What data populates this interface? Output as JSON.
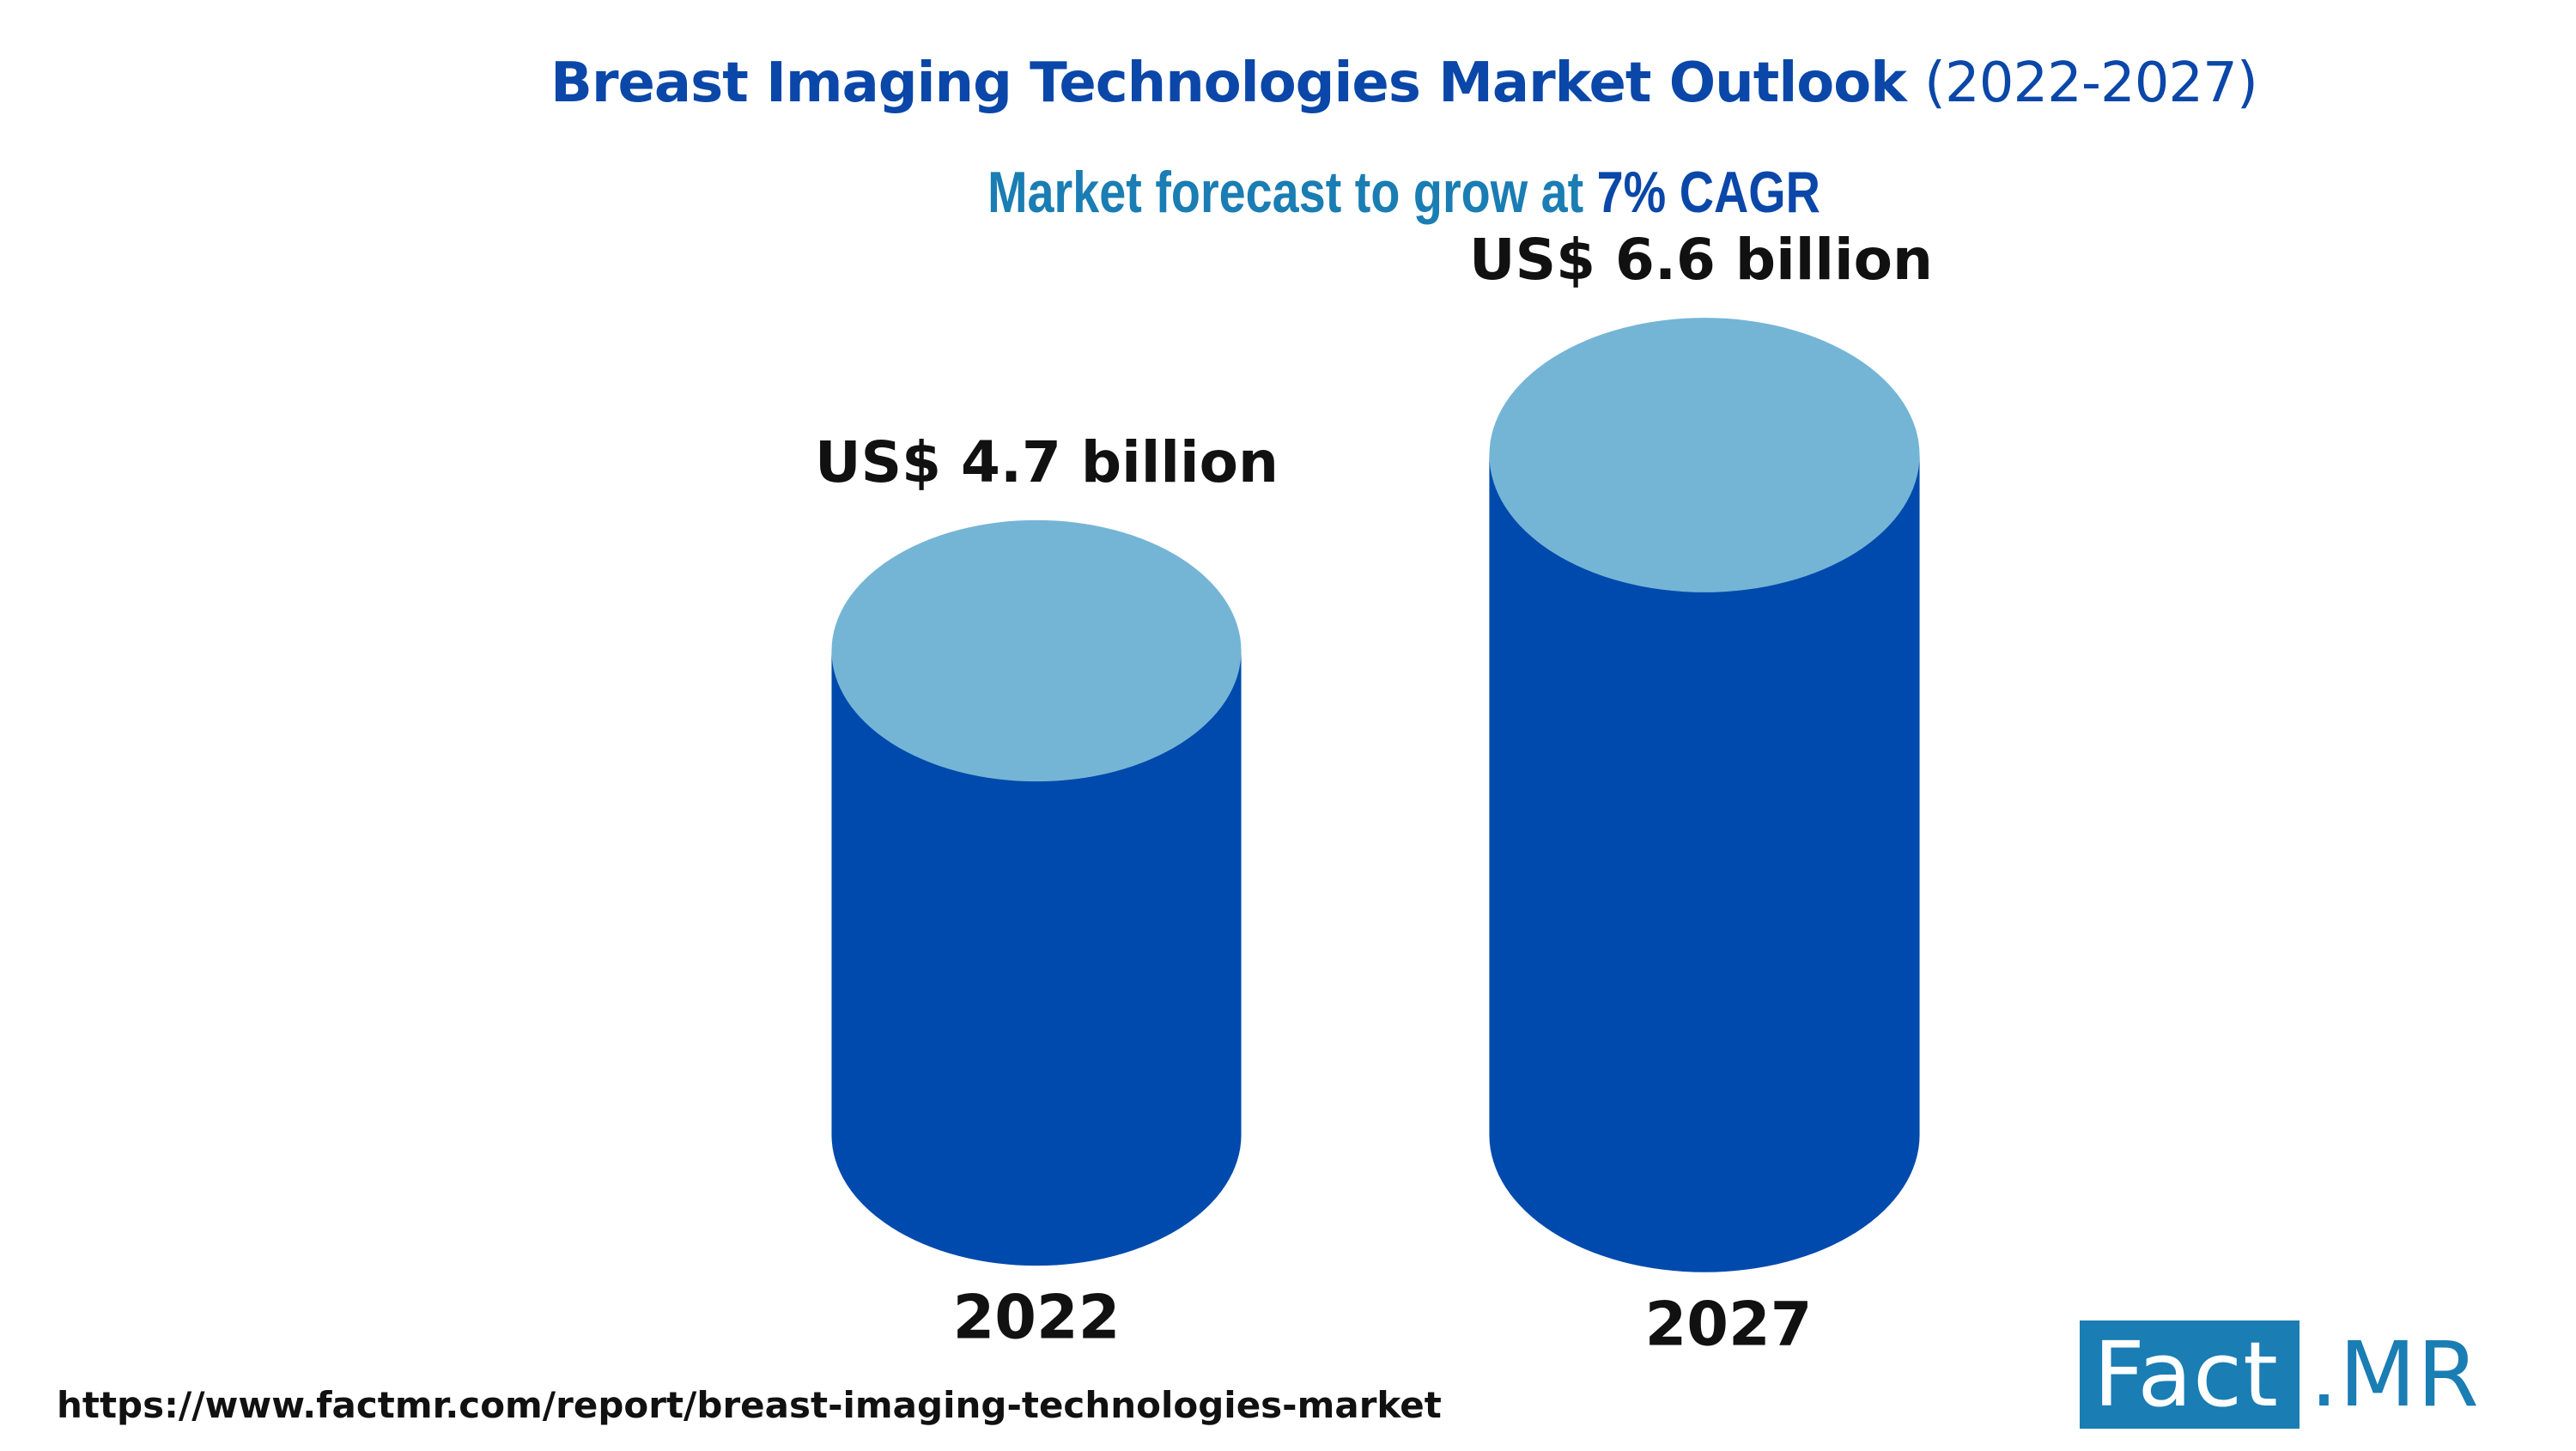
{
  "header": {
    "title_main": "Breast Imaging Technologies Market Outlook ",
    "title_paren": "(2022-2027)",
    "subtitle_main": "Market forecast to grow at ",
    "subtitle_accent": "7% CAGR"
  },
  "chart_data": {
    "type": "bar",
    "style": "3d-cylinder",
    "categories": [
      "2022",
      "2027"
    ],
    "values": [
      4.7,
      6.6
    ],
    "value_labels": [
      "US$ 4.7 billion",
      "US$ 6.6 billion"
    ],
    "unit": "US$ billion",
    "cagr": "7%",
    "xlabel": "",
    "ylabel": "",
    "grid": false,
    "colors": {
      "cylinder_body": "#004aad",
      "cylinder_top": "#74b5d6"
    }
  },
  "footer": {
    "source_url": "https://www.factmr.com/report/breast-imaging-technologies-market"
  },
  "logo": {
    "part1": "Fact",
    "part2": ".MR",
    "color": "#1a7db3"
  }
}
